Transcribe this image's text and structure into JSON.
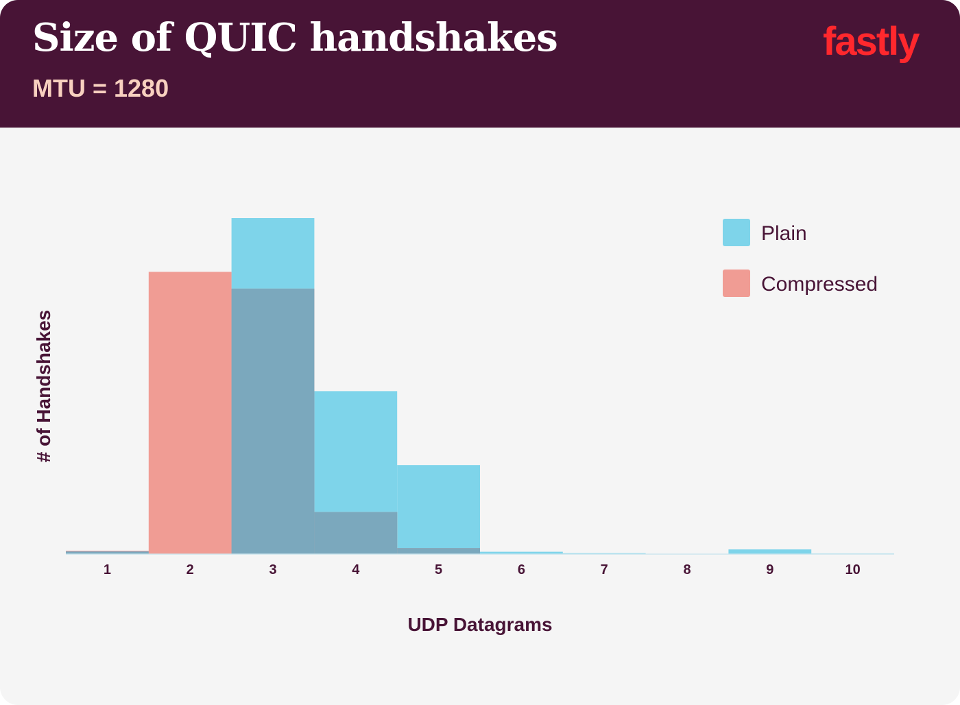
{
  "header": {
    "title": "Size of QUIC handshakes",
    "subtitle": "MTU = 1280",
    "logo_text": "fastly"
  },
  "colors": {
    "header_bg": "#481436",
    "title": "#ffffff",
    "subtitle": "#f8d0bf",
    "plot_bg": "#f5f5f5",
    "axis_text": "#481436",
    "plain": "#7ed4ea",
    "compressed": "#f09c94",
    "overlap": "#7ba8bd",
    "logo": "#ff282d"
  },
  "chart_data": {
    "type": "bar",
    "xlabel": "UDP Datagrams",
    "ylabel": "# of Handshakes",
    "categories": [
      "1",
      "2",
      "3",
      "4",
      "5",
      "6",
      "7",
      "8",
      "9",
      "10"
    ],
    "series": [
      {
        "name": "Plain",
        "values": [
          0.8,
          0,
          100,
          48.5,
          26.5,
          0.7,
          0.3,
          0,
          1.4,
          0.2
        ]
      },
      {
        "name": "Compressed",
        "values": [
          1,
          84,
          79,
          12.5,
          1.8,
          0,
          0,
          0,
          0,
          0
        ]
      }
    ],
    "ylim": [
      0,
      100
    ],
    "grid": false,
    "legend": "top-right"
  }
}
